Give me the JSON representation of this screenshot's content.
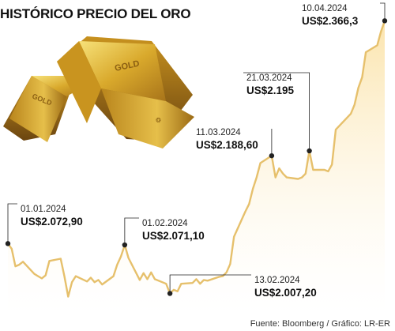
{
  "title": "HISTÓRICO PRECIO DEL ORO",
  "source": "Fuente: Bloomberg / Gráfico: LR-ER",
  "colors": {
    "line": "#e6c06c",
    "area_top": "#fbe7b6",
    "area_bottom": "#ffffff",
    "marker": "#222222",
    "leader": "#222222"
  },
  "illustration": {
    "icon": "gold-bars-icon",
    "bar_labels": [
      "GOLD",
      "GOLD"
    ]
  },
  "chart_data": {
    "type": "area",
    "title": "HISTÓRICO PRECIO DEL ORO",
    "x_start": "2024-01-01",
    "x_end": "2024-04-10",
    "ylim": [
      1990,
      2375
    ],
    "grid": false,
    "legend": "none",
    "series": [
      {
        "x": [
          "2024-01-01",
          "2024-01-02",
          "2024-01-03",
          "2024-01-04",
          "2024-01-05",
          "2024-01-08",
          "2024-01-09",
          "2024-01-10",
          "2024-01-11",
          "2024-01-12",
          "2024-01-15",
          "2024-01-16",
          "2024-01-17",
          "2024-01-18",
          "2024-01-19",
          "2024-01-22",
          "2024-01-23",
          "2024-01-24",
          "2024-01-25",
          "2024-01-26",
          "2024-01-29",
          "2024-01-30",
          "2024-01-31",
          "2024-02-01",
          "2024-02-02",
          "2024-02-05",
          "2024-02-06",
          "2024-02-07",
          "2024-02-08",
          "2024-02-09",
          "2024-02-12",
          "2024-02-13",
          "2024-02-14",
          "2024-02-15",
          "2024-02-16",
          "2024-02-19",
          "2024-02-20",
          "2024-02-21",
          "2024-02-22",
          "2024-02-23",
          "2024-02-26",
          "2024-02-27",
          "2024-02-28",
          "2024-02-29",
          "2024-03-01",
          "2024-03-04",
          "2024-03-05",
          "2024-03-06",
          "2024-03-07",
          "2024-03-08",
          "2024-03-11",
          "2024-03-12",
          "2024-03-13",
          "2024-03-14",
          "2024-03-15",
          "2024-03-18",
          "2024-03-19",
          "2024-03-20",
          "2024-03-21",
          "2024-03-22",
          "2024-03-25",
          "2024-03-26",
          "2024-03-27",
          "2024-03-28",
          "2024-04-01",
          "2024-04-02",
          "2024-04-03",
          "2024-04-04",
          "2024-04-05",
          "2024-04-08",
          "2024-04-09",
          "2024-04-10"
        ],
        "y": [
          2072.9,
          2066,
          2043,
          2045,
          2049,
          2033,
          2030,
          2027,
          2031,
          2050,
          2053,
          2030,
          2003,
          2022,
          2030,
          2023,
          2028,
          2022,
          2025,
          2019,
          2030,
          2045,
          2056,
          2071.1,
          2054,
          2025,
          2034,
          2026,
          2035,
          2026,
          2020,
          2007.2,
          2012,
          2010,
          2020,
          2021,
          2026,
          2020,
          2025,
          2024,
          2029,
          2030,
          2035,
          2046,
          2082,
          2115,
          2125,
          2145,
          2160,
          2179,
          2188.6,
          2160,
          2172,
          2165,
          2160,
          2158,
          2160,
          2165,
          2195,
          2170,
          2170,
          2168,
          2177,
          2223,
          2244,
          2256,
          2278,
          2292,
          2325,
          2334,
          2352,
          2366.3
        ]
      }
    ],
    "annotations": [
      {
        "x": "2024-01-01",
        "date": "01.01.2024",
        "value": "US$2.072,90"
      },
      {
        "x": "2024-02-01",
        "date": "01.02.2024",
        "value": "US$2.071,10"
      },
      {
        "x": "2024-02-13",
        "date": "13.02.2024",
        "value": "US$2.007,20"
      },
      {
        "x": "2024-03-11",
        "date": "11.03.2024",
        "value": "US$2.188,60"
      },
      {
        "x": "2024-03-21",
        "date": "21.03.2024",
        "value": "US$2.195"
      },
      {
        "x": "2024-04-10",
        "date": "10.04.2024",
        "value": "US$2.366,3"
      }
    ]
  }
}
